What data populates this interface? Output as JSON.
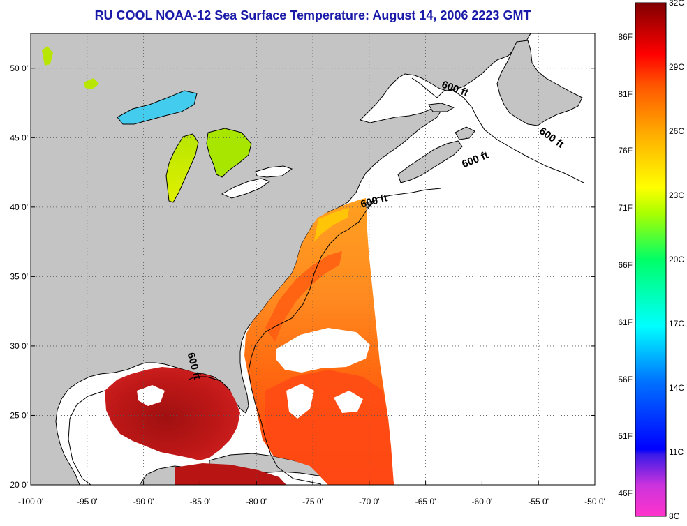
{
  "title": "RU COOL  NOAA-12  Sea Surface Temperature:  August 14, 2006 2223 GMT",
  "map": {
    "lon_range": [
      -100,
      -50
    ],
    "lat_range": [
      20,
      52.5
    ],
    "lon_ticks": [
      -100,
      -95,
      -90,
      -85,
      -80,
      -75,
      -70,
      -65,
      -60,
      -55,
      -50
    ],
    "lat_ticks": [
      20,
      25,
      30,
      35,
      40,
      45,
      50
    ],
    "lon_labels": [
      "-100 0'",
      "-95 0'",
      "-90 0'",
      "-85 0'",
      "-80 0'",
      "-75 0'",
      "-70 0'",
      "-65 0'",
      "-60 0'",
      "-55 0'",
      "-50 0'"
    ],
    "lat_labels": [
      "20 0'",
      "25 0'",
      "30 0'",
      "35 0'",
      "40 0'",
      "45 0'",
      "50 0'"
    ],
    "grid": "dotted",
    "colors": {
      "land": "#c4c4c4",
      "ocean_no_data": "#ffffff",
      "grid": "#555555"
    },
    "depth_contour": "600 ft",
    "depth_labels": [
      {
        "text": "600 ft",
        "lon": -62.5,
        "lat": 48.3,
        "rotate": 20
      },
      {
        "text": "600 ft",
        "lon": -54.0,
        "lat": 44.8,
        "rotate": 35
      },
      {
        "text": "600 ft",
        "lon": -60.5,
        "lat": 43.2,
        "rotate": -22
      },
      {
        "text": "600 ft",
        "lon": -69.5,
        "lat": 40.2,
        "rotate": -15
      },
      {
        "text": "600 ft",
        "lon": -85.8,
        "lat": 28.5,
        "rotate": 75
      }
    ]
  },
  "colorbar": {
    "celsius_range": [
      8,
      32
    ],
    "celsius_labels": [
      "32C",
      "29C",
      "26C",
      "23C",
      "20C",
      "17C",
      "14C",
      "11C",
      "8C"
    ],
    "fahrenheit_labels": [
      "86F",
      "81F",
      "76F",
      "71F",
      "66F",
      "61F",
      "56F",
      "51F",
      "46F"
    ],
    "gradient": [
      "#ff33cc",
      "#9b3fd8",
      "#0000ff",
      "#0080ff",
      "#00ffff",
      "#00ff66",
      "#80ff00",
      "#ffff00",
      "#ffb000",
      "#ff6600",
      "#ff0000",
      "#b00000",
      "#800000"
    ]
  }
}
